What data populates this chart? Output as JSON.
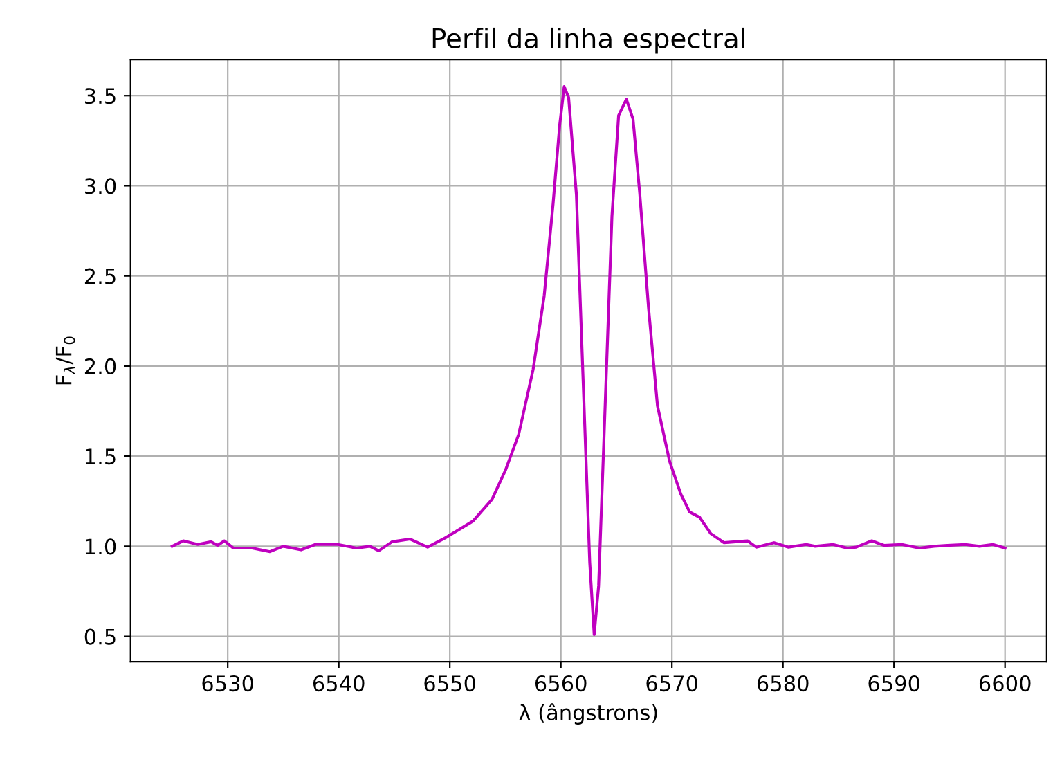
{
  "chart_data": {
    "type": "line",
    "title": "Perfil da linha espectral",
    "xlabel": "λ (ângstrons)",
    "ylabel": "F$_{λ}$/F$_{0}$",
    "series": [
      {
        "color": "#bf00bf",
        "x": [
          6525.0,
          6526.0,
          6527.3,
          6528.5,
          6529.1,
          6529.7,
          6530.5,
          6532.2,
          6533.8,
          6535.0,
          6536.6,
          6537.9,
          6539.9,
          6541.6,
          6542.8,
          6543.6,
          6544.8,
          6546.4,
          6548.0,
          6549.7,
          6552.1,
          6553.8,
          6555.0,
          6556.2,
          6557.5,
          6558.5,
          6559.3,
          6559.9,
          6560.3,
          6560.7,
          6561.4,
          6562.0,
          6562.6,
          6563.0,
          6563.4,
          6564.0,
          6564.6,
          6565.2,
          6565.9,
          6566.5,
          6567.1,
          6567.9,
          6568.7,
          6569.8,
          6570.8,
          6571.6,
          6572.5,
          6573.5,
          6574.7,
          6576.8,
          6577.6,
          6579.2,
          6580.5,
          6582.1,
          6582.9,
          6584.5,
          6585.8,
          6586.6,
          6588.0,
          6589.1,
          6590.7,
          6592.3,
          6593.6,
          6594.8,
          6596.4,
          6597.7,
          6598.9,
          6600.0
        ],
        "values": [
          1.0,
          1.03,
          1.01,
          1.025,
          1.005,
          1.03,
          0.99,
          0.99,
          0.97,
          1.0,
          0.98,
          1.01,
          1.01,
          0.99,
          1.0,
          0.975,
          1.025,
          1.04,
          0.995,
          1.05,
          1.14,
          1.26,
          1.42,
          1.62,
          1.98,
          2.39,
          2.9,
          3.34,
          3.55,
          3.49,
          2.95,
          1.93,
          0.91,
          0.51,
          0.78,
          1.8,
          2.83,
          3.39,
          3.48,
          3.37,
          2.96,
          2.32,
          1.78,
          1.47,
          1.29,
          1.19,
          1.16,
          1.07,
          1.02,
          1.03,
          0.995,
          1.02,
          0.995,
          1.01,
          1.0,
          1.01,
          0.99,
          0.995,
          1.03,
          1.005,
          1.01,
          0.99,
          1.0,
          1.005,
          1.01,
          1.0,
          1.01,
          0.99
        ]
      }
    ],
    "xlim": [
      6521.25,
      6603.75
    ],
    "xticks": [
      6530,
      6540,
      6550,
      6560,
      6570,
      6580,
      6590,
      6600
    ],
    "ylim": [
      0.36,
      3.7
    ],
    "yticks": [
      {
        "value": 0.5,
        "label": "0.5"
      },
      {
        "value": 1.0,
        "label": "1.0"
      },
      {
        "value": 1.5,
        "label": "1.5"
      },
      {
        "value": 2.0,
        "label": "2.0"
      },
      {
        "value": 2.5,
        "label": "2.5"
      },
      {
        "value": 3.0,
        "label": "3.0"
      },
      {
        "value": 3.5,
        "label": "3.5"
      }
    ],
    "grid": true
  }
}
